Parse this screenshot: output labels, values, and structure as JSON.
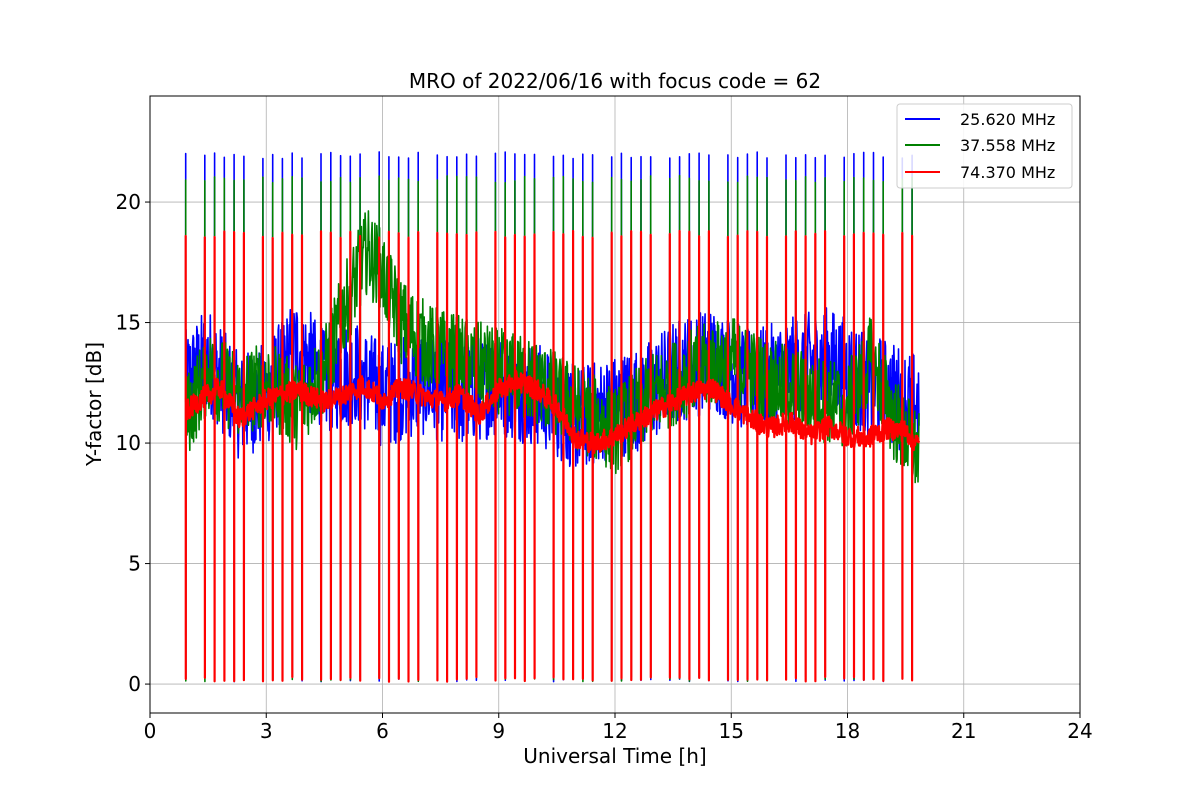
{
  "chart_data": {
    "type": "line",
    "title": "MRO of 2022/06/16 with focus code = 62",
    "xlabel": "Universal Time [h]",
    "ylabel": "Y-factor [dB]",
    "xlim": [
      0,
      24
    ],
    "ylim": [
      -1.2,
      24.4
    ],
    "xticks": [
      0,
      3,
      6,
      9,
      12,
      15,
      18,
      21,
      24
    ],
    "yticks": [
      0,
      5,
      10,
      15,
      20
    ],
    "grid": true,
    "legend_position": "top-right",
    "x_start": 0.92,
    "x_end": 19.85,
    "pulse_interval_h": 0.25,
    "series": [
      {
        "name": "25.620 MHz",
        "color": "#0000ff",
        "pulse_high": 22.1,
        "pulse_low": 0.1,
        "baseline_x": [
          0.92,
          1.5,
          2.3,
          3.0,
          3.8,
          4.5,
          5.3,
          6.0,
          7.0,
          8.0,
          9.0,
          10.0,
          11.0,
          12.0,
          12.8,
          13.6,
          14.5,
          15.5,
          16.5,
          17.5,
          18.5,
          19.2,
          19.85
        ],
        "baseline_y": [
          12.5,
          13.5,
          11.5,
          12.0,
          14.0,
          12.5,
          13.0,
          12.0,
          12.5,
          12.0,
          12.5,
          12.0,
          11.0,
          11.5,
          12.0,
          13.0,
          13.5,
          12.5,
          13.0,
          13.5,
          12.5,
          12.0,
          11.5
        ],
        "spread": 2.2
      },
      {
        "name": "37.558 MHz",
        "color": "#008000",
        "pulse_high": 21.1,
        "pulse_low": 0.1,
        "baseline_x": [
          0.92,
          1.5,
          2.3,
          3.0,
          3.8,
          4.5,
          5.0,
          5.6,
          6.0,
          6.5,
          7.2,
          8.0,
          9.0,
          10.0,
          11.0,
          12.0,
          13.0,
          14.0,
          15.0,
          16.0,
          17.0,
          18.0,
          18.6,
          19.2,
          19.85
        ],
        "baseline_y": [
          11.0,
          13.0,
          12.0,
          12.5,
          11.5,
          13.0,
          15.5,
          18.0,
          17.0,
          15.0,
          14.0,
          13.5,
          13.0,
          12.5,
          11.5,
          10.5,
          12.0,
          13.0,
          13.5,
          12.5,
          12.0,
          11.5,
          13.5,
          11.0,
          9.5
        ],
        "spread": 1.8
      },
      {
        "name": "74.370 MHz",
        "color": "#ff0000",
        "pulse_high": 18.8,
        "pulse_low": 0.1,
        "baseline_x": [
          0.92,
          1.3,
          1.8,
          2.3,
          3.0,
          3.8,
          4.5,
          5.0,
          5.5,
          6.0,
          6.5,
          7.0,
          7.5,
          8.0,
          8.5,
          9.0,
          9.5,
          10.0,
          10.5,
          11.0,
          11.5,
          12.0,
          12.5,
          13.0,
          13.5,
          14.0,
          14.5,
          15.0,
          15.5,
          16.0,
          16.5,
          17.0,
          17.5,
          18.0,
          18.5,
          19.0,
          19.5,
          19.85
        ],
        "baseline_y": [
          11.3,
          11.8,
          12.3,
          11.0,
          11.8,
          12.2,
          11.7,
          12.0,
          12.4,
          11.8,
          12.3,
          12.0,
          11.7,
          12.0,
          11.2,
          12.2,
          12.6,
          12.2,
          11.5,
          10.2,
          10.0,
          10.3,
          10.8,
          11.3,
          11.7,
          12.1,
          12.3,
          11.6,
          11.0,
          10.6,
          10.9,
          10.3,
          10.7,
          10.3,
          10.2,
          10.6,
          10.5,
          9.9
        ],
        "spread": 0.45
      }
    ]
  }
}
